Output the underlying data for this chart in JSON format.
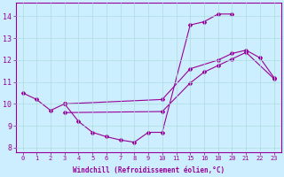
{
  "xlabel": "Windchill (Refroidissement éolien,°C)",
  "bg_color": "#cceeff",
  "line_color": "#990099",
  "grid_color": "#aadddd",
  "ylim": [
    7.8,
    14.6
  ],
  "yticks": [
    8,
    9,
    10,
    11,
    12,
    13,
    14
  ],
  "x_values": [
    0,
    1,
    2,
    3,
    4,
    5,
    6,
    7,
    8,
    9,
    10,
    11,
    15,
    16,
    18,
    20,
    21,
    22,
    23
  ],
  "x_labels": [
    "0",
    "1",
    "2",
    "3",
    "4",
    "5",
    "6",
    "7",
    "8",
    "9",
    "10",
    "11",
    "15",
    "16",
    "18",
    "20",
    "21",
    "22",
    "23"
  ],
  "series": [
    {
      "x": [
        0,
        1,
        2,
        3
      ],
      "y": [
        10.5,
        10.2,
        9.7,
        10.0
      ]
    },
    {
      "x": [
        3,
        4,
        5,
        6,
        7,
        8,
        9,
        10,
        15,
        16,
        18,
        20
      ],
      "y": [
        10.0,
        9.2,
        8.7,
        8.5,
        8.35,
        8.25,
        8.7,
        8.7,
        13.6,
        13.75,
        14.1,
        14.1
      ]
    },
    {
      "x": [
        3,
        10,
        15,
        18,
        20,
        21,
        22,
        23
      ],
      "y": [
        10.0,
        10.2,
        11.6,
        12.0,
        12.3,
        12.45,
        12.1,
        11.2
      ]
    },
    {
      "x": [
        3,
        10,
        15,
        16,
        18,
        20,
        21,
        23
      ],
      "y": [
        9.6,
        9.65,
        10.95,
        11.45,
        11.75,
        12.05,
        12.35,
        11.15
      ]
    }
  ]
}
